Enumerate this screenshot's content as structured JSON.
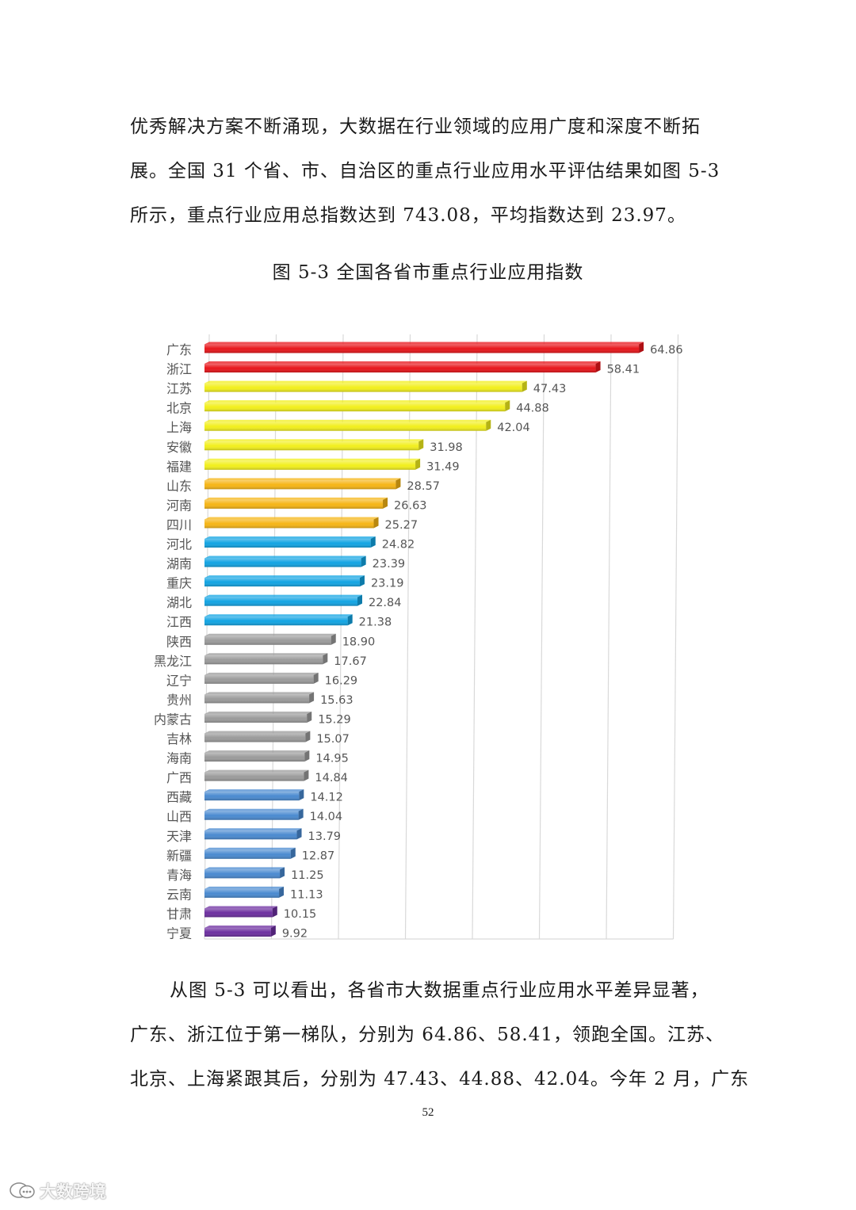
{
  "intro": {
    "lines": [
      "优秀解决方案不断涌现，大数据在行业领域的应用广度和深度不断拓",
      "展。全国 31 个省、市、自治区的重点行业应用水平评估结果如图 5-3",
      "所示，重点行业应用总指数达到 743.08，平均指数达到 23.97。"
    ]
  },
  "figure_caption": "图 5-3  全国各省市重点行业应用指数",
  "chart_data": {
    "type": "bar",
    "orientation": "horizontal",
    "title": "",
    "xlabel": "",
    "ylabel": "",
    "xlim": [
      0,
      70
    ],
    "grid": true,
    "categories": [
      "广东",
      "浙江",
      "江苏",
      "北京",
      "上海",
      "安徽",
      "福建",
      "山东",
      "河南",
      "四川",
      "河北",
      "湖南",
      "重庆",
      "湖北",
      "江西",
      "陕西",
      "黑龙江",
      "辽宁",
      "贵州",
      "内蒙古",
      "吉林",
      "海南",
      "广西",
      "西藏",
      "山西",
      "天津",
      "新疆",
      "青海",
      "云南",
      "甘肃",
      "宁夏"
    ],
    "values": [
      64.86,
      58.41,
      47.43,
      44.88,
      42.04,
      31.98,
      31.49,
      28.57,
      26.63,
      25.27,
      24.82,
      23.39,
      23.19,
      22.84,
      21.38,
      18.9,
      17.67,
      16.29,
      15.63,
      15.29,
      15.07,
      14.95,
      14.84,
      14.12,
      14.04,
      13.79,
      12.87,
      11.25,
      11.13,
      10.15,
      9.92
    ],
    "value_labels": [
      "64.86",
      "58.41",
      "47.43",
      "44.88",
      "42.04",
      "31.98",
      "31.49",
      "28.57",
      "26.63",
      "25.27",
      "24.82",
      "23.39",
      "23.19",
      "22.84",
      "21.38",
      "18.90",
      "17.67",
      "16.29",
      "15.63",
      "15.29",
      "15.07",
      "14.95",
      "14.84",
      "14.12",
      "14.04",
      "13.79",
      "12.87",
      "11.25",
      "11.13",
      "10.15",
      "9.92"
    ],
    "tier_colors": [
      "#e8161b",
      "#e8161b",
      "#f2ef1c",
      "#f2ef1c",
      "#f2ef1c",
      "#f2ef1c",
      "#f2ef1c",
      "#f6b515",
      "#f6b515",
      "#f6b515",
      "#12a4e3",
      "#12a4e3",
      "#12a4e3",
      "#12a4e3",
      "#12a4e3",
      "#9b9b9b",
      "#9b9b9b",
      "#9b9b9b",
      "#9b9b9b",
      "#9b9b9b",
      "#9b9b9b",
      "#9b9b9b",
      "#9b9b9b",
      "#4a8ad0",
      "#4a8ad0",
      "#4a8ad0",
      "#4a8ad0",
      "#4a8ad0",
      "#4a8ad0",
      "#6d2fa0",
      "#6d2fa0"
    ]
  },
  "body": {
    "lines": [
      "从图 5-3 可以看出，各省市大数据重点行业应用水平差异显著，",
      "广东、浙江位于第一梯队，分别为 64.86、58.41，领跑全国。江苏、",
      "北京、上海紧跟其后，分别为 47.43、44.88、42.04。今年 2 月，广东"
    ]
  },
  "page_number": "52",
  "watermark": {
    "text": "大数跨境",
    "icon": "chat-bubble-icon"
  }
}
